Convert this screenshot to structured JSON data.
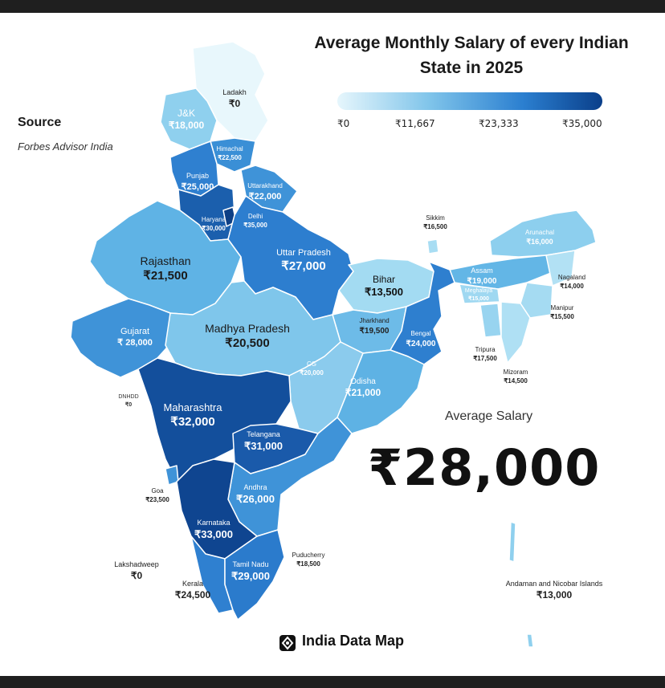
{
  "title_line1": "Average Monthly Salary of every Indian",
  "title_line2": "State in 2025",
  "legend": {
    "ticks": [
      "₹0",
      "₹11,667",
      "₹23,333",
      "₹35,000"
    ],
    "colors": [
      "#e6f6fc",
      "#7fc4ea",
      "#2b7fd0",
      "#0a3f8a"
    ]
  },
  "source_label": "Source",
  "source_value": "Forbes Advisor India",
  "average_label": "Average Salary",
  "average_value": "₹28,000",
  "brand": "India Data Map",
  "regions": [
    {
      "name": "Ladakh",
      "value": "₹0"
    },
    {
      "name": "J&K",
      "value": "₹18,000"
    },
    {
      "name": "Himachal",
      "value": "₹22,500"
    },
    {
      "name": "Punjab",
      "value": "₹25,000"
    },
    {
      "name": "Uttarakhand",
      "value": "₹22,000"
    },
    {
      "name": "Haryana",
      "value": "₹30,000"
    },
    {
      "name": "Delhi",
      "value": "₹35,000"
    },
    {
      "name": "Rajasthan",
      "value": "₹21,500"
    },
    {
      "name": "Uttar Pradesh",
      "value": "₹27,000"
    },
    {
      "name": "Sikkim",
      "value": "₹16,500"
    },
    {
      "name": "Arunachal",
      "value": "₹16,000"
    },
    {
      "name": "Assam",
      "value": "₹19,000"
    },
    {
      "name": "Nagaland",
      "value": "₹14,000"
    },
    {
      "name": "Meghalaya",
      "value": "₹15,000"
    },
    {
      "name": "Manipur",
      "value": "₹15,500"
    },
    {
      "name": "Bihar",
      "value": "₹13,500"
    },
    {
      "name": "Jharkhand",
      "value": "₹19,500"
    },
    {
      "name": "Bengal",
      "value": "₹24,000"
    },
    {
      "name": "Tripura",
      "value": "₹17,500"
    },
    {
      "name": "Mizoram",
      "value": "₹14,500"
    },
    {
      "name": "Gujarat",
      "value": "₹ 28,000"
    },
    {
      "name": "Madhya Pradesh",
      "value": "₹20,500"
    },
    {
      "name": "CG",
      "value": "₹20,000"
    },
    {
      "name": "Odisha",
      "value": "₹21,000"
    },
    {
      "name": "DNHDD",
      "value": "₹0"
    },
    {
      "name": "Maharashtra",
      "value": "₹32,000"
    },
    {
      "name": "Telangana",
      "value": "₹31,000"
    },
    {
      "name": "Goa",
      "value": "₹23,500"
    },
    {
      "name": "Andhra",
      "value": "₹26,000"
    },
    {
      "name": "Karnataka",
      "value": "₹33,000"
    },
    {
      "name": "Lakshadweep",
      "value": "₹0"
    },
    {
      "name": "Puducherry",
      "value": "₹18,500"
    },
    {
      "name": "Tamil Nadu",
      "value": "₹29,000"
    },
    {
      "name": "Kerala",
      "value": "₹24,500"
    },
    {
      "name": "Andaman and Nicobar Islands",
      "value": "₹13,000"
    }
  ]
}
